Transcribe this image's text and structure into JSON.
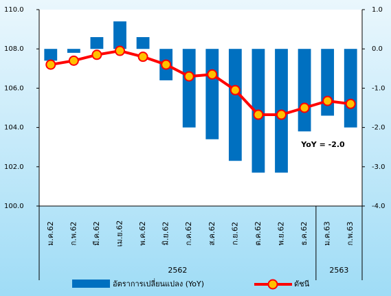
{
  "chart_data": {
    "type": "bar_line",
    "categories": [
      "ม.ค.62",
      "ก.พ.62",
      "มี.ค.62",
      "เม.ย.62",
      "พ.ค.62",
      "มิ.ย.62",
      "ก.ค.62",
      "ส.ค.62",
      "ก.ย.62",
      "ต.ค.62",
      "พ.ย.62",
      "ธ.ค.62",
      "ม.ค.63",
      "ก.พ.63"
    ],
    "groups": [
      {
        "label": "2562",
        "span": 12
      },
      {
        "label": "2563",
        "span": 2
      }
    ],
    "series": [
      {
        "name": "อัตราการเปลี่ยนแปลง (YoY)",
        "type": "bar",
        "axis": "y2",
        "color": "#0070c0",
        "values": [
          -0.3,
          -0.1,
          0.3,
          0.7,
          0.3,
          -0.8,
          -2.0,
          -2.3,
          -2.85,
          -3.15,
          -3.15,
          -2.1,
          -1.7,
          -2.0
        ]
      },
      {
        "name": "ดัชนี",
        "type": "line",
        "axis": "y",
        "color": "#ff0000",
        "marker_color": "#ffc000",
        "values": [
          107.2,
          107.4,
          107.7,
          107.9,
          107.6,
          107.2,
          106.6,
          106.7,
          105.9,
          104.65,
          104.65,
          105.0,
          105.35,
          105.2
        ]
      }
    ],
    "ylim": [
      100,
      110
    ],
    "yticks": [
      {
        "value": 100,
        "label": "100.0"
      },
      {
        "value": 102,
        "label": "102.0"
      },
      {
        "value": 104,
        "label": "104.0"
      },
      {
        "value": 106,
        "label": "106.0"
      },
      {
        "value": 108,
        "label": "108.0"
      },
      {
        "value": 110,
        "label": "110.0"
      }
    ],
    "y2lim": [
      -4,
      1
    ],
    "y2ticks": [
      {
        "value": -4,
        "label": "-4.0"
      },
      {
        "value": -3,
        "label": "-3.0"
      },
      {
        "value": -2,
        "label": "-2.0"
      },
      {
        "value": -1,
        "label": "-1.0"
      },
      {
        "value": 0,
        "label": "0.0"
      },
      {
        "value": 1,
        "label": "1.0"
      }
    ],
    "annotation": "YoY = -2.0"
  }
}
